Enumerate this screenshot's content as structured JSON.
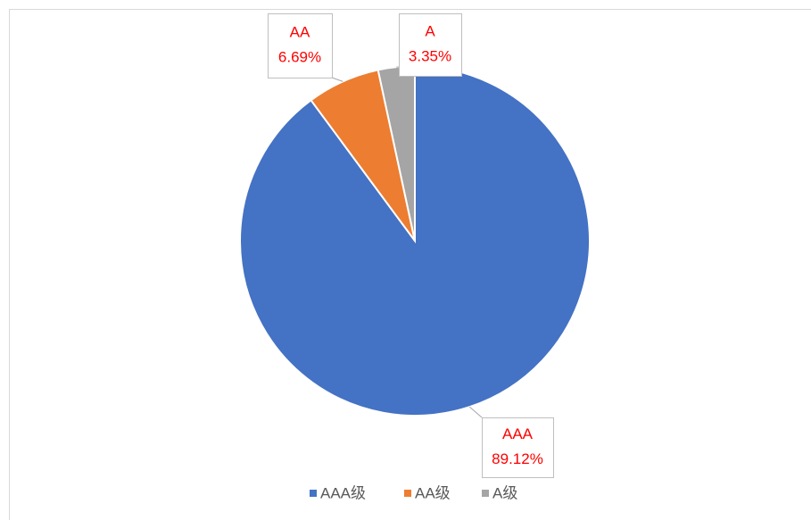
{
  "chart_data": {
    "type": "pie",
    "categories": [
      "AAA级",
      "AA级",
      "A级"
    ],
    "label_names": [
      "AAA",
      "AA",
      "A"
    ],
    "values": [
      89.12,
      6.69,
      3.35
    ],
    "value_labels": [
      "89.12%",
      "6.69%",
      "3.35%"
    ],
    "colors": [
      "#4472c4",
      "#ed7d31",
      "#a5a5a5"
    ],
    "legend": "bottom"
  }
}
